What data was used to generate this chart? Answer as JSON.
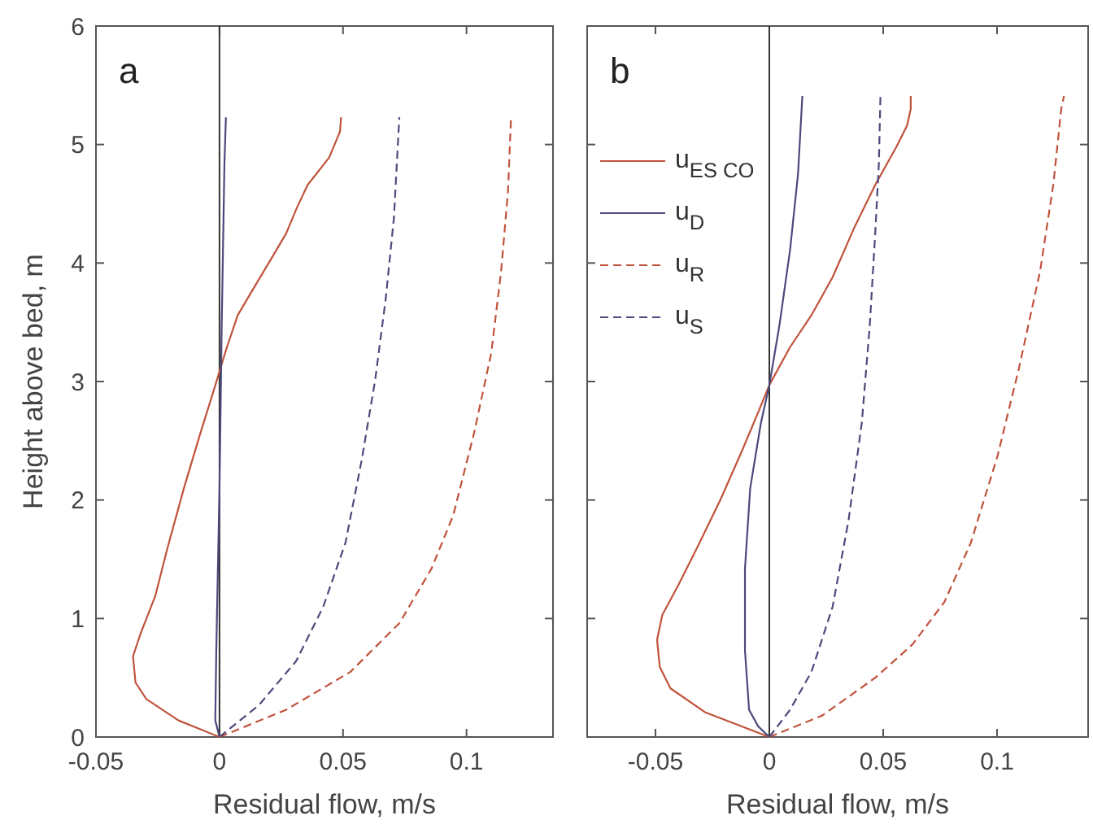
{
  "chart_data": [
    {
      "type": "line",
      "xlabel": "Residual flow, m/s",
      "ylabel": "Height above bed, m",
      "annotations": [
        "a"
      ],
      "xlim": [
        -0.05,
        0.135
      ],
      "ylim": [
        0,
        6
      ],
      "xticks": [
        -0.05,
        0,
        0.05,
        0.1
      ],
      "yticks": [
        0,
        1,
        2,
        3,
        4,
        5,
        6
      ],
      "ref_lines": [
        {
          "axis": "x",
          "value": 0,
          "color": "#333333"
        }
      ],
      "series": [
        {
          "color": "#c0533b",
          "line_style": "solid",
          "x": [
            0,
            -0.0166,
            -0.0296,
            -0.034,
            -0.035,
            -0.032,
            -0.026,
            -0.021,
            -0.0144,
            -0.0078,
            -0.0024,
            0.003,
            0.0074,
            0.0139,
            0.0205,
            0.027,
            0.0314,
            0.0357,
            0.0444,
            0.0488,
            0.0492
          ],
          "values": [
            0,
            0.14,
            0.32,
            0.46,
            0.68,
            0.87,
            1.19,
            1.6,
            2.1,
            2.56,
            2.92,
            3.29,
            3.56,
            3.79,
            4.02,
            4.25,
            4.47,
            4.66,
            4.89,
            5.11,
            5.23
          ]
        },
        {
          "color": "#4b4a7c",
          "line_style": "solid",
          "x": [
            0,
            -0.0017,
            -0.0013,
            0,
            0.0009,
            0.002,
            0.0026
          ],
          "values": [
            0,
            0.14,
            0.73,
            2.1,
            3.47,
            4.84,
            5.23
          ]
        },
        {
          "color": "#c0533b",
          "line_style": "dashed",
          "x": [
            0,
            0.027,
            0.053,
            0.0728,
            0.0858,
            0.0946,
            0.103,
            0.11,
            0.114,
            0.1168,
            0.118
          ],
          "values": [
            0,
            0.23,
            0.55,
            0.96,
            1.42,
            1.87,
            2.56,
            3.24,
            3.93,
            4.61,
            5.23
          ]
        },
        {
          "color": "#4b4a7c",
          "line_style": "dashed",
          "x": [
            0,
            0.016,
            0.031,
            0.042,
            0.051,
            0.0575,
            0.063,
            0.0673,
            0.0706,
            0.0728
          ],
          "values": [
            0,
            0.27,
            0.64,
            1.1,
            1.64,
            2.33,
            3.01,
            3.7,
            4.38,
            5.23
          ]
        }
      ]
    },
    {
      "type": "line",
      "xlabel": "Residual flow, m/s",
      "annotations": [
        "b"
      ],
      "xlim": [
        -0.08,
        0.14
      ],
      "ylim": [
        0,
        6
      ],
      "xticks": [
        -0.05,
        0,
        0.05,
        0.1
      ],
      "yticks": [
        0,
        1,
        2,
        3,
        4,
        5,
        6
      ],
      "tick_labels": "x",
      "legend": "top left",
      "ref_lines": [
        {
          "axis": "x",
          "value": 0,
          "color": "#333333"
        }
      ],
      "series": [
        {
          "name": "u$_{ES CO}$",
          "color": "#c0533b",
          "line_style": "solid",
          "x": [
            0,
            -0.0283,
            -0.0434,
            -0.0481,
            -0.0493,
            -0.047,
            -0.04,
            -0.0306,
            -0.0213,
            -0.0119,
            -0.0049,
            0,
            0.0091,
            0.0185,
            0.0278,
            0.0371,
            0.0465,
            0.0558,
            0.0605,
            0.0621,
            0.0621
          ],
          "values": [
            0,
            0.21,
            0.41,
            0.59,
            0.82,
            1.03,
            1.28,
            1.64,
            2.01,
            2.42,
            2.74,
            2.97,
            3.29,
            3.56,
            3.88,
            4.29,
            4.66,
            4.98,
            5.16,
            5.3,
            5.41
          ]
        },
        {
          "name": "u$_{D}$",
          "color": "#4b4a7c",
          "line_style": "solid",
          "x": [
            0,
            -0.0049,
            -0.0089,
            -0.0107,
            -0.0107,
            -0.0084,
            -0.0037,
            0,
            0.0044,
            0.0091,
            0.0126,
            0.0145
          ],
          "values": [
            0,
            0.09,
            0.23,
            0.73,
            1.42,
            2.1,
            2.65,
            2.97,
            3.47,
            4.11,
            4.75,
            5.41
          ]
        },
        {
          "name": "u$_{R}$",
          "color": "#c0533b",
          "line_style": "dashed",
          "x": [
            0,
            0.0231,
            0.0465,
            0.0628,
            0.0769,
            0.0885,
            0.1002,
            0.1096,
            0.1189,
            0.1247,
            0.1282,
            0.1294
          ],
          "values": [
            0,
            0.18,
            0.5,
            0.78,
            1.14,
            1.64,
            2.37,
            3.11,
            3.93,
            4.66,
            5.3,
            5.41
          ]
        },
        {
          "name": "u$_{S}$",
          "color": "#4b4a7c",
          "line_style": "dashed",
          "x": [
            0,
            0.0091,
            0.0185,
            0.0278,
            0.0348,
            0.0406,
            0.0441,
            0.0465,
            0.0481,
            0.0488
          ],
          "values": [
            0,
            0.23,
            0.55,
            1.1,
            1.83,
            2.65,
            3.47,
            4.25,
            4.84,
            5.41
          ]
        }
      ]
    }
  ]
}
